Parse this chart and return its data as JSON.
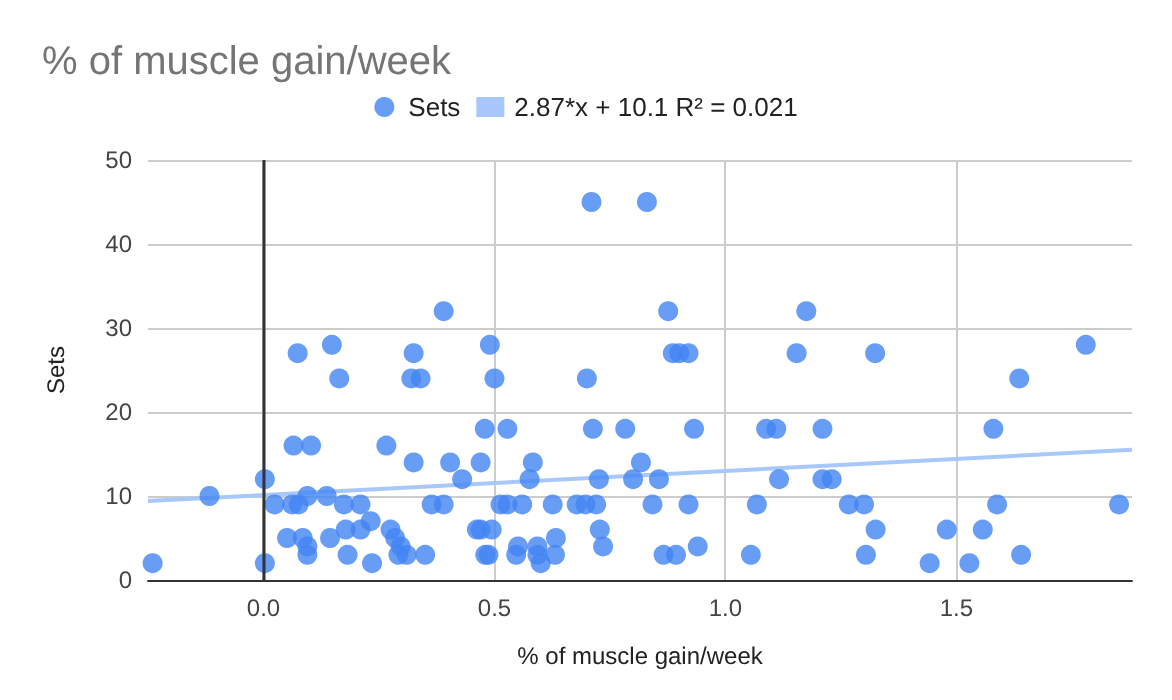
{
  "chart_data": {
    "type": "scatter",
    "title": "% of muscle gain/week",
    "xlabel": "% of muscle gain/week",
    "ylabel": "Sets",
    "xlim": [
      -0.25,
      1.88
    ],
    "ylim": [
      0,
      50
    ],
    "xticks": [
      {
        "value": 0,
        "label": "0.0"
      },
      {
        "value": 0.5,
        "label": "0.5"
      },
      {
        "value": 1,
        "label": "1.0"
      },
      {
        "value": 1.5,
        "label": "1.5"
      }
    ],
    "yticks": [
      0,
      10,
      20,
      30,
      40,
      50
    ],
    "grid": true,
    "legend": "top",
    "ref_lines": [
      {
        "axis": "x",
        "value": 0,
        "color": "#333333"
      }
    ],
    "series": [
      {
        "name": "Sets",
        "color": "#4285f4",
        "marker": "circle",
        "x": [
          -0.24,
          0.074,
          0.148,
          0.325,
          0.49,
          0.164,
          0.32,
          0.34,
          0.5,
          0.065,
          0.103,
          0.266,
          0.325,
          0.404,
          0.47,
          0.479,
          0.43,
          0.003,
          -0.117,
          0.095,
          0.137,
          0.024,
          0.062,
          0.076,
          0.174,
          0.21,
          0.364,
          0.39,
          0.051,
          0.085,
          0.095,
          0.095,
          0.144,
          0.182,
          0.178,
          0.21,
          0.232,
          0.235,
          0.275,
          0.285,
          0.297,
          0.292,
          0.31,
          0.35,
          0.003,
          0.47,
          0.48,
          0.39,
          0.71,
          0.83,
          0.876,
          1.175,
          0.528,
          0.583,
          0.576,
          0.7,
          0.886,
          0.9,
          0.92,
          1.154,
          0.713,
          0.783,
          0.932,
          1.088,
          1.11,
          1.21,
          0.817,
          0.726,
          0.8,
          0.856,
          1.116,
          1.21,
          1.23,
          0.513,
          0.528,
          0.56,
          0.626,
          0.678,
          0.697,
          0.72,
          0.842,
          0.92,
          1.068,
          0.462,
          0.494,
          0.728,
          0.551,
          0.547,
          0.593,
          0.593,
          0.6,
          0.633,
          0.631,
          0.735,
          0.487,
          0.866,
          0.893,
          0.94,
          1.055,
          1.324,
          1.78,
          1.636,
          1.58,
          1.267,
          1.3,
          1.588,
          1.852,
          1.325,
          1.479,
          1.557,
          1.304,
          1.64,
          1.442,
          1.528
        ],
        "values": [
          2,
          27,
          28,
          27,
          28,
          24,
          24,
          24,
          24,
          16,
          16,
          16,
          14,
          14,
          14,
          18,
          12,
          12,
          10,
          10,
          10,
          9,
          9,
          9,
          9,
          9,
          9,
          9,
          5,
          5,
          4,
          3,
          5,
          3,
          6,
          6,
          7,
          2,
          6,
          5,
          4,
          3,
          3,
          3,
          2,
          6,
          3,
          32,
          45,
          45,
          32,
          32,
          18,
          14,
          12,
          24,
          27,
          27,
          27,
          27,
          18,
          18,
          18,
          18,
          18,
          18,
          14,
          12,
          12,
          12,
          12,
          12,
          12,
          9,
          9,
          9,
          9,
          9,
          9,
          9,
          9,
          9,
          9,
          6,
          6,
          6,
          4,
          3,
          4,
          3,
          2,
          5,
          3,
          4,
          3,
          3,
          3,
          4,
          3,
          27,
          28,
          24,
          18,
          9,
          9,
          9,
          9,
          6,
          6,
          6,
          3,
          3,
          2,
          2
        ]
      },
      {
        "name": "2.87*x + 10.1 R² = 0.021",
        "color": "#a8c7fa",
        "type": "line",
        "marker": "none",
        "x": [
          -0.25,
          1.88
        ],
        "values": [
          9.4,
          15.5
        ]
      }
    ]
  }
}
